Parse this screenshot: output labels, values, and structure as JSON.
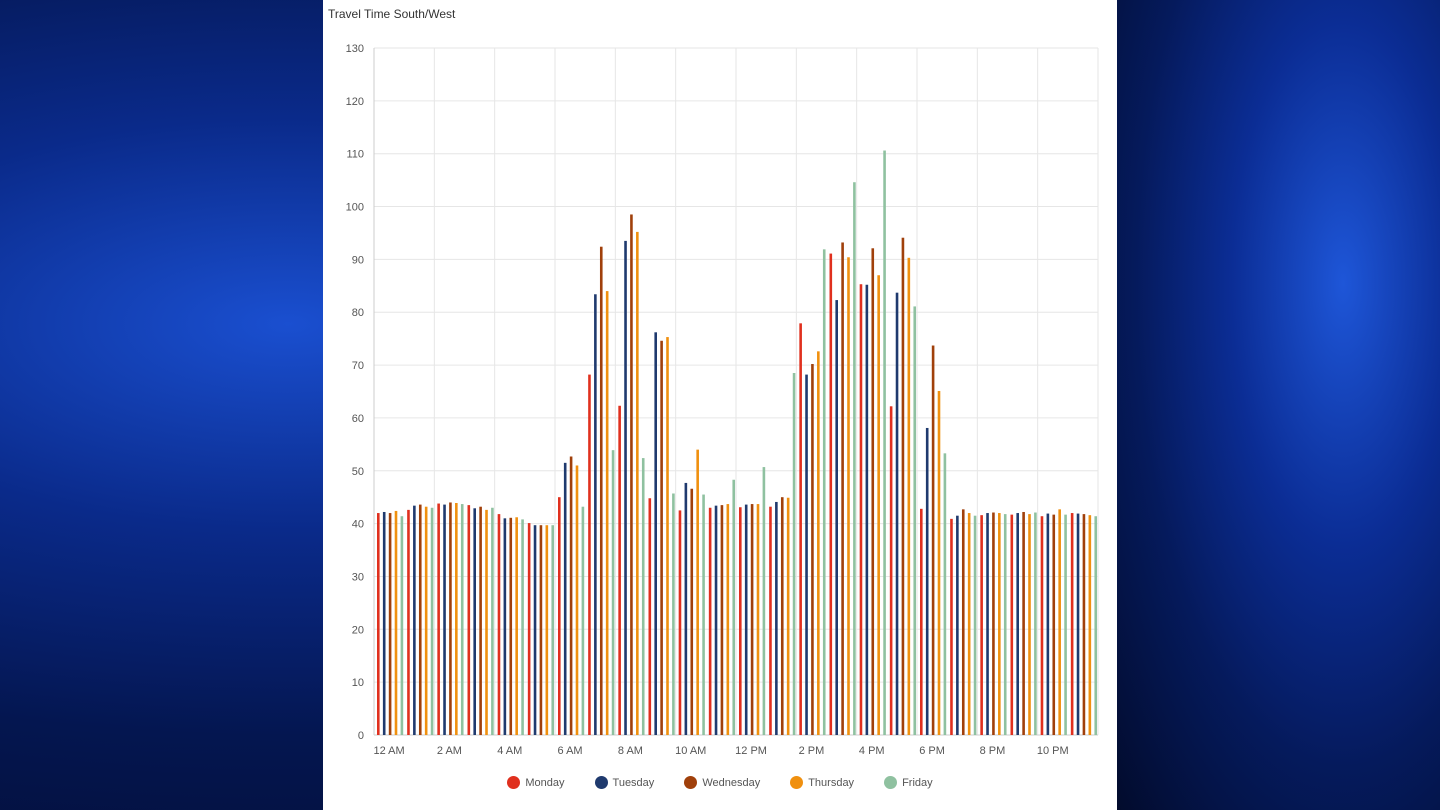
{
  "chart_data": {
    "type": "bar",
    "title": "Travel Time South/West",
    "xlabel": "",
    "ylabel": "",
    "ylim": [
      0,
      130
    ],
    "yticks": [
      0,
      10,
      20,
      30,
      40,
      50,
      60,
      70,
      80,
      90,
      100,
      110,
      120,
      130
    ],
    "grid": true,
    "legend_placement": "bottom",
    "categories": [
      "12 AM",
      "1 AM",
      "2 AM",
      "3 AM",
      "4 AM",
      "5 AM",
      "6 AM",
      "7 AM",
      "8 AM",
      "9 AM",
      "10 AM",
      "11 AM",
      "12 PM",
      "1 PM",
      "2 PM",
      "3 PM",
      "4 PM",
      "5 PM",
      "6 PM",
      "7 PM",
      "8 PM",
      "9 PM",
      "10 PM",
      "11 PM"
    ],
    "xtick_labels": [
      "12 AM",
      "2 AM",
      "4 AM",
      "6 AM",
      "8 AM",
      "10 AM",
      "12 PM",
      "2 PM",
      "4 PM",
      "6 PM",
      "8 PM",
      "10 PM"
    ],
    "series": [
      {
        "name": "Monday",
        "color": "#e0301e",
        "values": [
          42,
          42.6,
          43.8,
          43.5,
          41.8,
          40.1,
          45,
          68.2,
          62.3,
          44.8,
          42.5,
          43,
          43.1,
          43.2,
          77.9,
          91.1,
          85.3,
          62.2,
          42.8,
          40.9,
          41.6,
          41.7,
          41.4,
          42
        ]
      },
      {
        "name": "Tuesday",
        "color": "#1f3a6e",
        "values": [
          42.2,
          43.4,
          43.6,
          42.9,
          41,
          39.7,
          51.5,
          83.4,
          93.5,
          76.2,
          47.7,
          43.4,
          43.6,
          44.1,
          68.2,
          82.3,
          85.2,
          83.7,
          58.1,
          41.5,
          42,
          42,
          41.9,
          41.9
        ]
      },
      {
        "name": "Wednesday",
        "color": "#a0400b",
        "values": [
          42,
          43.6,
          44,
          43.2,
          41.1,
          39.7,
          52.7,
          92.4,
          98.5,
          74.6,
          46.6,
          43.5,
          43.7,
          45,
          70.2,
          93.2,
          92.1,
          94.1,
          73.7,
          42.7,
          42.1,
          42.2,
          41.7,
          41.8
        ]
      },
      {
        "name": "Thursday",
        "color": "#f0900f",
        "values": [
          42.4,
          43.2,
          43.9,
          42.6,
          41.2,
          39.7,
          51,
          84,
          95.2,
          75.3,
          54,
          43.7,
          43.7,
          44.9,
          72.6,
          90.4,
          87,
          90.3,
          65.1,
          42,
          42,
          41.8,
          42.7,
          41.6
        ]
      },
      {
        "name": "Friday",
        "color": "#8fc1a0",
        "values": [
          41.4,
          43,
          43.7,
          43,
          40.8,
          39.7,
          43.2,
          53.9,
          52.4,
          45.7,
          45.5,
          48.3,
          50.7,
          68.5,
          91.9,
          104.6,
          110.6,
          81.1,
          53.3,
          41.5,
          41.8,
          42.1,
          41.7,
          41.4
        ]
      }
    ]
  }
}
